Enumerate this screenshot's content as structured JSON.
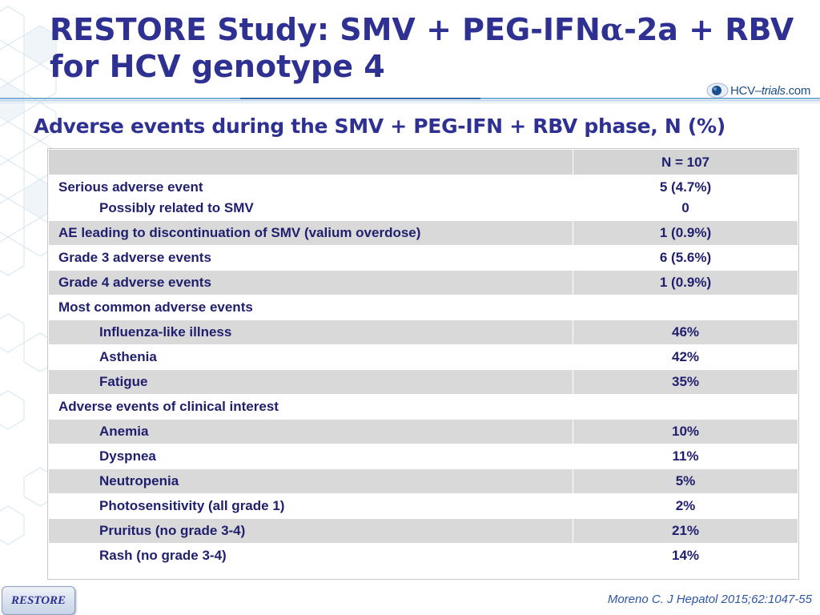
{
  "slide": {
    "title_line1_pre": "RESTORE Study: SMV + PEG-IFN",
    "title_alpha": "α",
    "title_line1_post": "-2a + RBV",
    "title_line2": "for HCV genotype 4",
    "subtitle": "Adverse events during the SMV + PEG-IFN + RBV phase, N (%)",
    "brand": {
      "name": "HCV",
      "dash": "–",
      "trials": "trials",
      "tld": ".com"
    },
    "badge": "RESTORE",
    "citation": "Moreno C. J Hepatol 2015;62:1047-55"
  },
  "table": {
    "header_label": "",
    "header_value": "N = 107",
    "serious": {
      "label": "Serious adverse event",
      "sublabel": "Possibly related to SMV",
      "value": "5 (4.7%)",
      "subvalue": "0"
    },
    "rows": [
      {
        "label": "AE leading to discontinuation of SMV (valium overdose)",
        "value": "1 (0.9%)"
      },
      {
        "label": "Grade 3 adverse events",
        "value": "6 (5.6%)"
      },
      {
        "label": "Grade 4 adverse events",
        "value": "1 (0.9%)"
      },
      {
        "label": "Most common adverse events",
        "value": ""
      },
      {
        "label": "Influenza-like illness",
        "value": "46%"
      },
      {
        "label": "Asthenia",
        "value": "42%"
      },
      {
        "label": "Fatigue",
        "value": "35%"
      },
      {
        "label": "Adverse events of clinical interest",
        "value": ""
      },
      {
        "label": "Anemia",
        "value": "10%"
      },
      {
        "label": "Dyspnea",
        "value": "11%"
      },
      {
        "label": "Neutropenia",
        "value": "5%"
      },
      {
        "label": "Photosensitivity (all grade 1)",
        "value": "2%"
      },
      {
        "label": "Pruritus (no grade 3-4)",
        "value": "21%"
      },
      {
        "label": "Rash (no grade 3-4)",
        "value": "14%"
      }
    ]
  },
  "colors": {
    "title": "#2e3192",
    "table_text": "#1f1f6e",
    "row_shaded": "#d9d9d9",
    "citation": "#2e56a8"
  }
}
